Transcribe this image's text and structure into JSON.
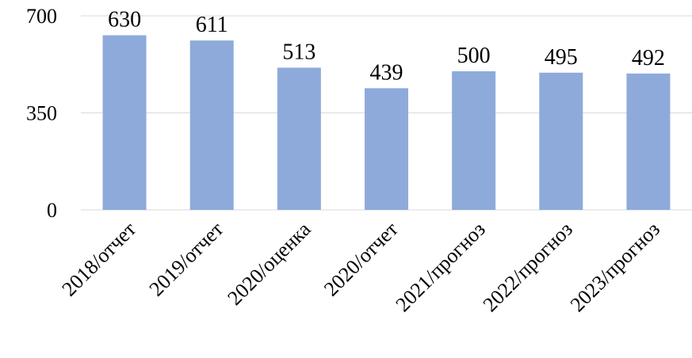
{
  "chart_data": {
    "type": "bar",
    "title": "",
    "xlabel": "",
    "ylabel": "",
    "categories": [
      "2018/отчет",
      "2019/отчет",
      "2020/оценка",
      "2020/отчет",
      "2021/прогноз",
      "2022/прогноз",
      "2023/прогноз"
    ],
    "values": [
      630,
      611,
      513,
      439,
      500,
      495,
      492
    ],
    "ylim": [
      0,
      700
    ],
    "yticks": [
      0,
      350,
      700
    ],
    "ytick_labels": [
      "0",
      "350",
      "700"
    ],
    "grid": true,
    "legend": "none",
    "bar_color": "#8eaadb",
    "grid_color": "#d9d9d9"
  }
}
